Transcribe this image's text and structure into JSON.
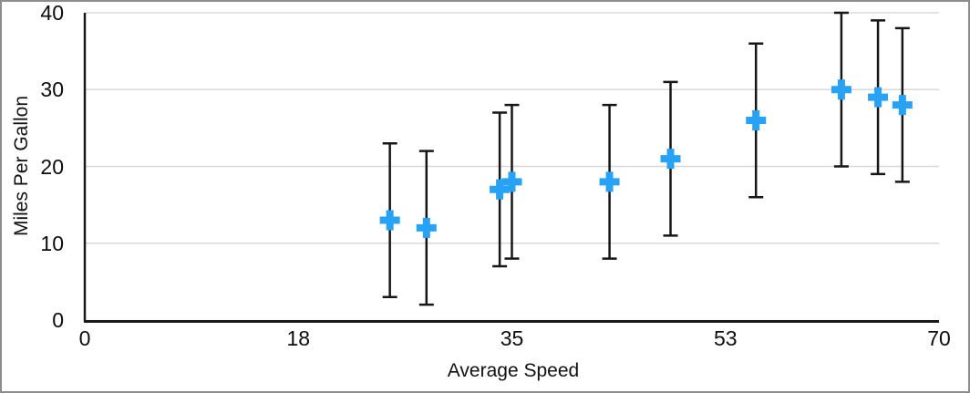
{
  "figure": {
    "border_color": "#8d8d8d",
    "background_color": "#ffffff"
  },
  "chart_data": {
    "type": "scatter",
    "title": "",
    "xlabel": "Average Speed",
    "ylabel": "Miles Per Gallon",
    "xlim": [
      0,
      70
    ],
    "ylim": [
      0,
      40
    ],
    "x_tick_labels": [
      "0",
      "18",
      "35",
      "53",
      "70"
    ],
    "y_ticks": [
      0,
      10,
      20,
      30,
      40
    ],
    "grid": "horizontal-only",
    "legend_position": "none",
    "marker": "plus",
    "marker_color": "#27a2f5",
    "error_bar_color": "#161616",
    "axis_color": "#1a1a1a",
    "grid_color": "#d8d8d8",
    "error_bars": "symmetric, magnitude 10 up and down on every point",
    "points": [
      {
        "x": 25,
        "y": 13,
        "err_plus": 10,
        "err_minus": 10
      },
      {
        "x": 28,
        "y": 12,
        "err_plus": 10,
        "err_minus": 10
      },
      {
        "x": 34,
        "y": 17,
        "err_plus": 10,
        "err_minus": 10
      },
      {
        "x": 35,
        "y": 18,
        "err_plus": 10,
        "err_minus": 10
      },
      {
        "x": 43,
        "y": 18,
        "err_plus": 10,
        "err_minus": 10
      },
      {
        "x": 48,
        "y": 21,
        "err_plus": 10,
        "err_minus": 10
      },
      {
        "x": 55,
        "y": 26,
        "err_plus": 10,
        "err_minus": 10
      },
      {
        "x": 62,
        "y": 30,
        "err_plus": 10,
        "err_minus": 10
      },
      {
        "x": 65,
        "y": 29,
        "err_plus": 10,
        "err_minus": 10
      },
      {
        "x": 67,
        "y": 28,
        "err_plus": 10,
        "err_minus": 10
      }
    ]
  }
}
